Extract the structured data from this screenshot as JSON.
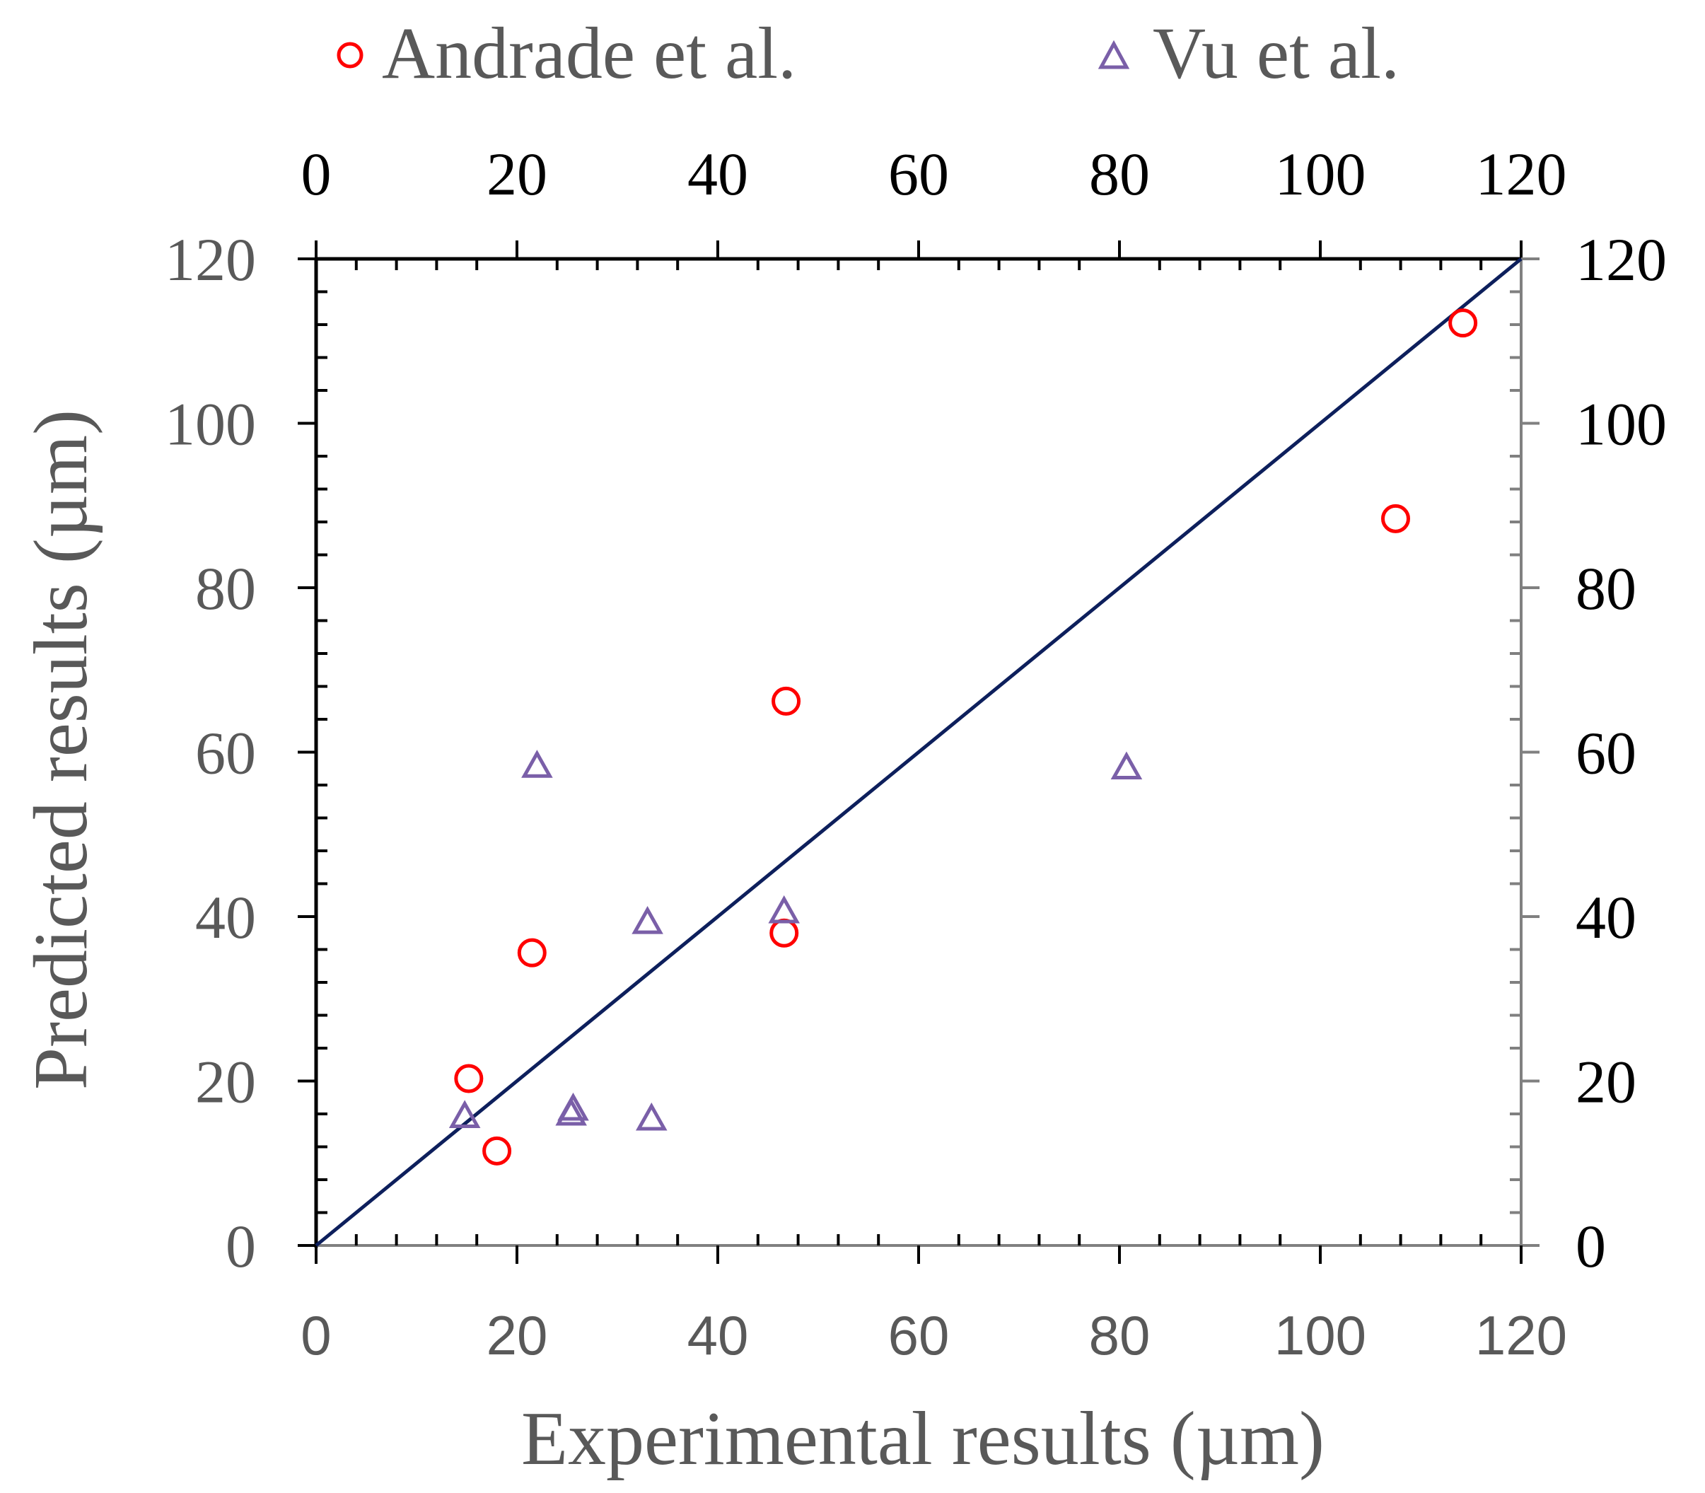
{
  "chart_data": {
    "type": "scatter",
    "title": "",
    "xlabel": "Experimental results (µm)",
    "ylabel": "Predicted results (µm)",
    "xlim": [
      0,
      120
    ],
    "ylim": [
      0,
      120
    ],
    "x_ticks": [
      "0",
      "20",
      "40",
      "60",
      "80",
      "100",
      "120"
    ],
    "y_ticks": [
      "0",
      "20",
      "40",
      "60",
      "80",
      "100",
      "120"
    ],
    "secondary_axes": {
      "top": true,
      "right": true
    },
    "grid": false,
    "legend_position": "top",
    "reference_line": {
      "name": "y = x",
      "x": [
        0,
        120
      ],
      "y": [
        0,
        120
      ],
      "color": "#0d1f5c"
    },
    "series": [
      {
        "name": "Andrade et al.",
        "marker": "circle",
        "color": "#ff0000",
        "points": [
          {
            "x": 15.2,
            "y": 20.3
          },
          {
            "x": 18.0,
            "y": 11.5
          },
          {
            "x": 21.5,
            "y": 35.6
          },
          {
            "x": 46.6,
            "y": 38.0
          },
          {
            "x": 46.8,
            "y": 66.2
          },
          {
            "x": 107.5,
            "y": 88.4
          },
          {
            "x": 114.2,
            "y": 112.2
          }
        ]
      },
      {
        "name": "Vu et al.",
        "marker": "triangle",
        "color": "#7a5fa8",
        "points": [
          {
            "x": 14.8,
            "y": 15.6
          },
          {
            "x": 22.0,
            "y": 58.2
          },
          {
            "x": 25.4,
            "y": 15.9
          },
          {
            "x": 25.6,
            "y": 16.5
          },
          {
            "x": 33.0,
            "y": 39.2
          },
          {
            "x": 33.4,
            "y": 15.3
          },
          {
            "x": 46.6,
            "y": 40.5
          },
          {
            "x": 80.7,
            "y": 58.0
          }
        ]
      }
    ]
  }
}
